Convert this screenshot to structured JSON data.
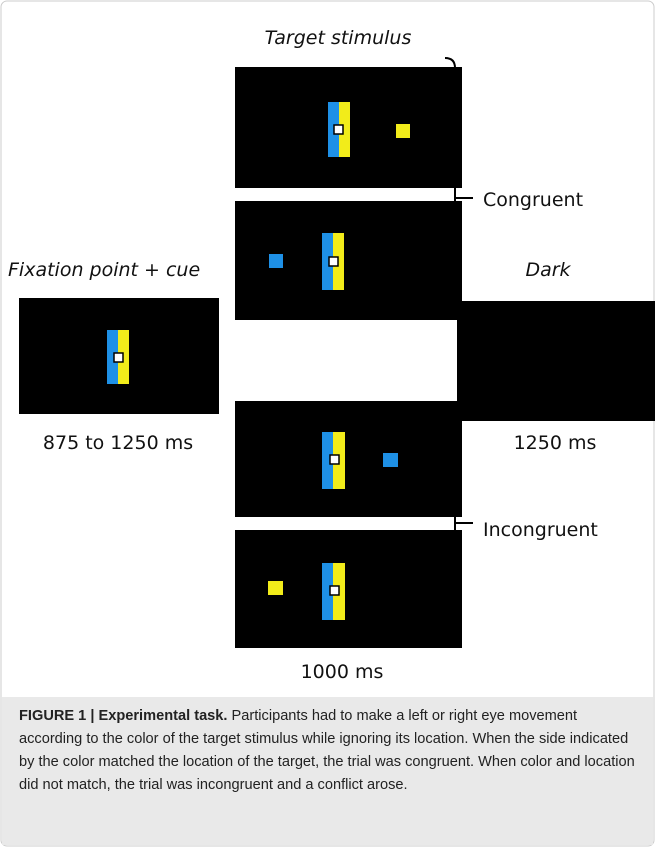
{
  "figure": {
    "labels": {
      "target": "Target stimulus",
      "fixation": "Fixation point + cue",
      "dark": "Dark",
      "congruent": "Congruent",
      "incongruent": "Incongruent",
      "fixation_time": "875 to 1250 ms",
      "target_time": "1000 ms",
      "dark_time": "1250 ms"
    },
    "caption": {
      "label": "FIGURE 1 | Experimental task.",
      "text": "Participants had to make a left or right eye movement according to the color of the target stimulus while ignoring its location. When the side indicated by the color matched the location of the target, the trial was congruent. When color and location did not match, the trial was incongruent and a conflict arose."
    }
  }
}
